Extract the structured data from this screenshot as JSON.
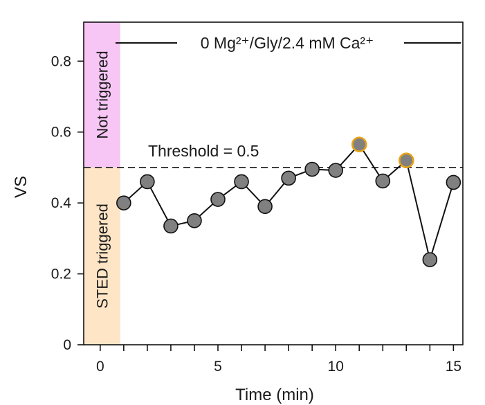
{
  "chart_data": {
    "type": "line",
    "title": "",
    "xlabel": "Time (min)",
    "ylabel": "VS",
    "xlim": [
      -0.7,
      15.4
    ],
    "ylim": [
      0,
      0.91
    ],
    "xticks": [
      0,
      5,
      10,
      15
    ],
    "xminor_ticks": [
      1,
      2,
      3,
      4,
      6,
      7,
      8,
      9,
      11,
      12,
      13,
      14
    ],
    "yticks": [
      0,
      0.2,
      0.4,
      0.6,
      0.8
    ],
    "xtick_labels": [
      "0",
      "5",
      "10",
      "15"
    ],
    "ytick_labels": [
      "0",
      "0.2",
      "0.4",
      "0.6",
      "0.8"
    ],
    "grid": false,
    "series": [
      {
        "name": "VS",
        "x": [
          1,
          2,
          3,
          4,
          5,
          6,
          7,
          8,
          9,
          10,
          11,
          12,
          13,
          14,
          15
        ],
        "y": [
          0.4,
          0.46,
          0.335,
          0.35,
          0.41,
          0.46,
          0.39,
          0.47,
          0.495,
          0.492,
          0.565,
          0.462,
          0.52,
          0.24,
          0.458
        ],
        "marker_color": "#808080",
        "line_color": "#111111"
      }
    ],
    "highlighted_points": [
      11,
      13
    ],
    "highlight_color": "#e8a317",
    "threshold": {
      "value": 0.5,
      "label": "Threshold = 0.5"
    },
    "condition_label": "0 Mg²⁺/Gly/2.4 mM Ca²⁺",
    "bands": [
      {
        "label": "Not triggered",
        "y_from": 0.5,
        "y_to": 0.91,
        "color": "#f7c6f5"
      },
      {
        "label": "STED triggered",
        "y_from": 0,
        "y_to": 0.5,
        "color": "#fde5c6"
      }
    ],
    "band_x_range": [
      -0.7,
      0.85
    ]
  }
}
